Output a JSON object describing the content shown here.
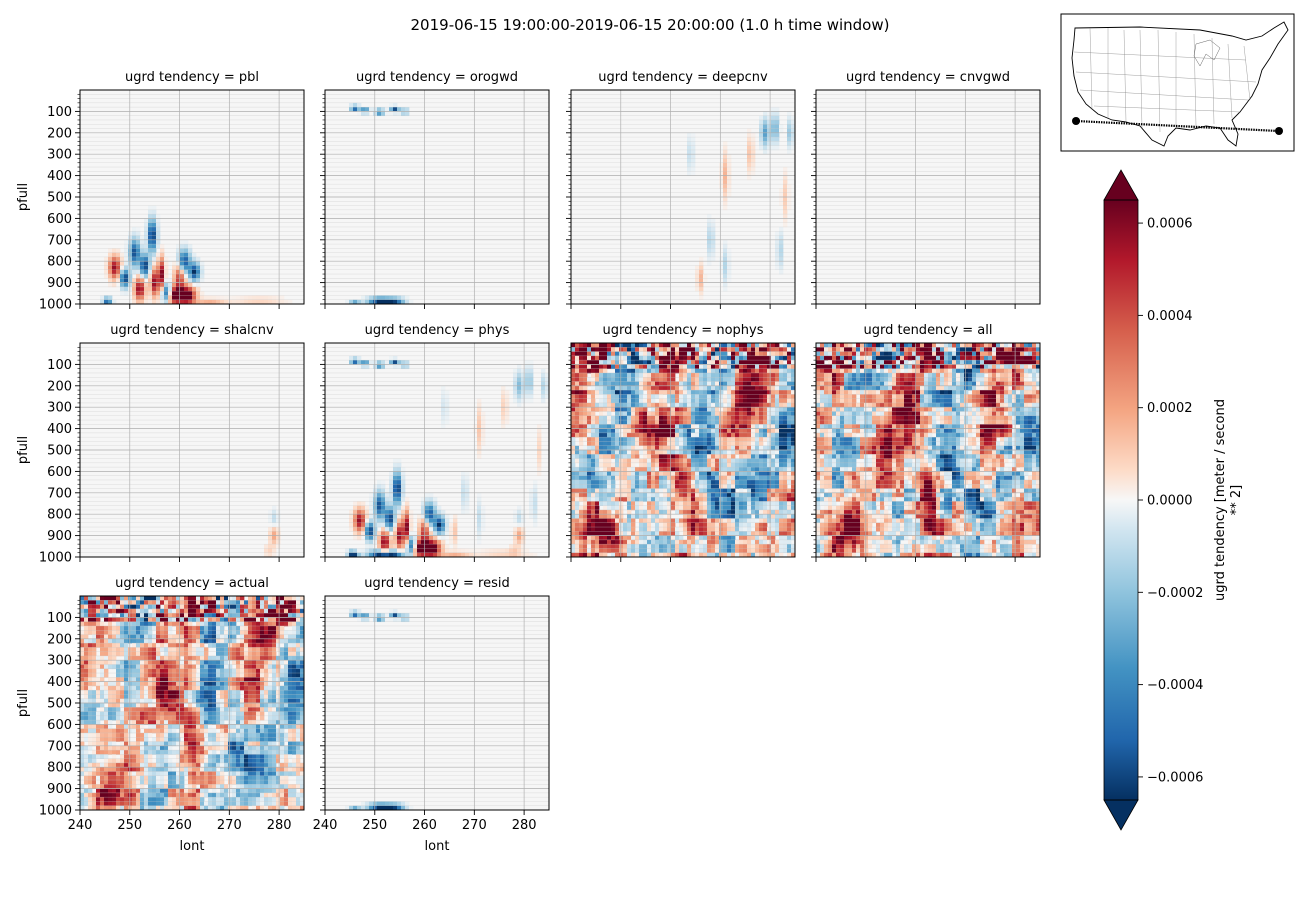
{
  "figure": {
    "suptitle": "2019-06-15 19:00:00-2019-06-15 20:00:00 (1.0 h time window)"
  },
  "chart_data": {
    "type": "heatmap",
    "title": "2019-06-15 19:00:00-2019-06-15 20:00:00 (1.0 h time window)",
    "xlabel": "lont",
    "ylabel": "pfull",
    "xlim": [
      240,
      285
    ],
    "ylim": [
      1000,
      0
    ],
    "xticks": [
      240,
      250,
      260,
      270,
      280
    ],
    "yticks": [
      100,
      200,
      300,
      400,
      500,
      600,
      700,
      800,
      900,
      1000
    ],
    "grid": true,
    "colormap": "RdBu_r",
    "panels": [
      {
        "title": "ugrd tendency = pbl",
        "signal": "pbl"
      },
      {
        "title": "ugrd tendency = orogwd",
        "signal": "orogwd"
      },
      {
        "title": "ugrd tendency = deepcnv",
        "signal": "deepcnv"
      },
      {
        "title": "ugrd tendency = cnvgwd",
        "signal": "none"
      },
      {
        "title": "ugrd tendency = shalcnv",
        "signal": "shalcnv"
      },
      {
        "title": "ugrd tendency = phys",
        "signal": "phys"
      },
      {
        "title": "ugrd tendency = nophys",
        "signal": "full"
      },
      {
        "title": "ugrd tendency = all",
        "signal": "full"
      },
      {
        "title": "ugrd tendency = actual",
        "signal": "full2"
      },
      {
        "title": "ugrd tendency = resid",
        "signal": "orogwd"
      }
    ],
    "colorbar": {
      "label_line1": "ugrd tendency [meter / second",
      "label_line2": "** 2]",
      "vmin": -0.00065,
      "vmax": 0.00065,
      "ticks": [
        -0.0006,
        -0.0004,
        -0.0002,
        0.0,
        0.0002,
        0.0004,
        0.0006
      ],
      "tick_labels": [
        "−0.0006",
        "−0.0004",
        "−0.0002",
        "0.0000",
        "0.0002",
        "0.0004",
        "0.0006"
      ],
      "extend": "both"
    },
    "inset_map": {
      "region": "contiguous United States",
      "transect_lon": [
        240,
        285
      ]
    }
  }
}
